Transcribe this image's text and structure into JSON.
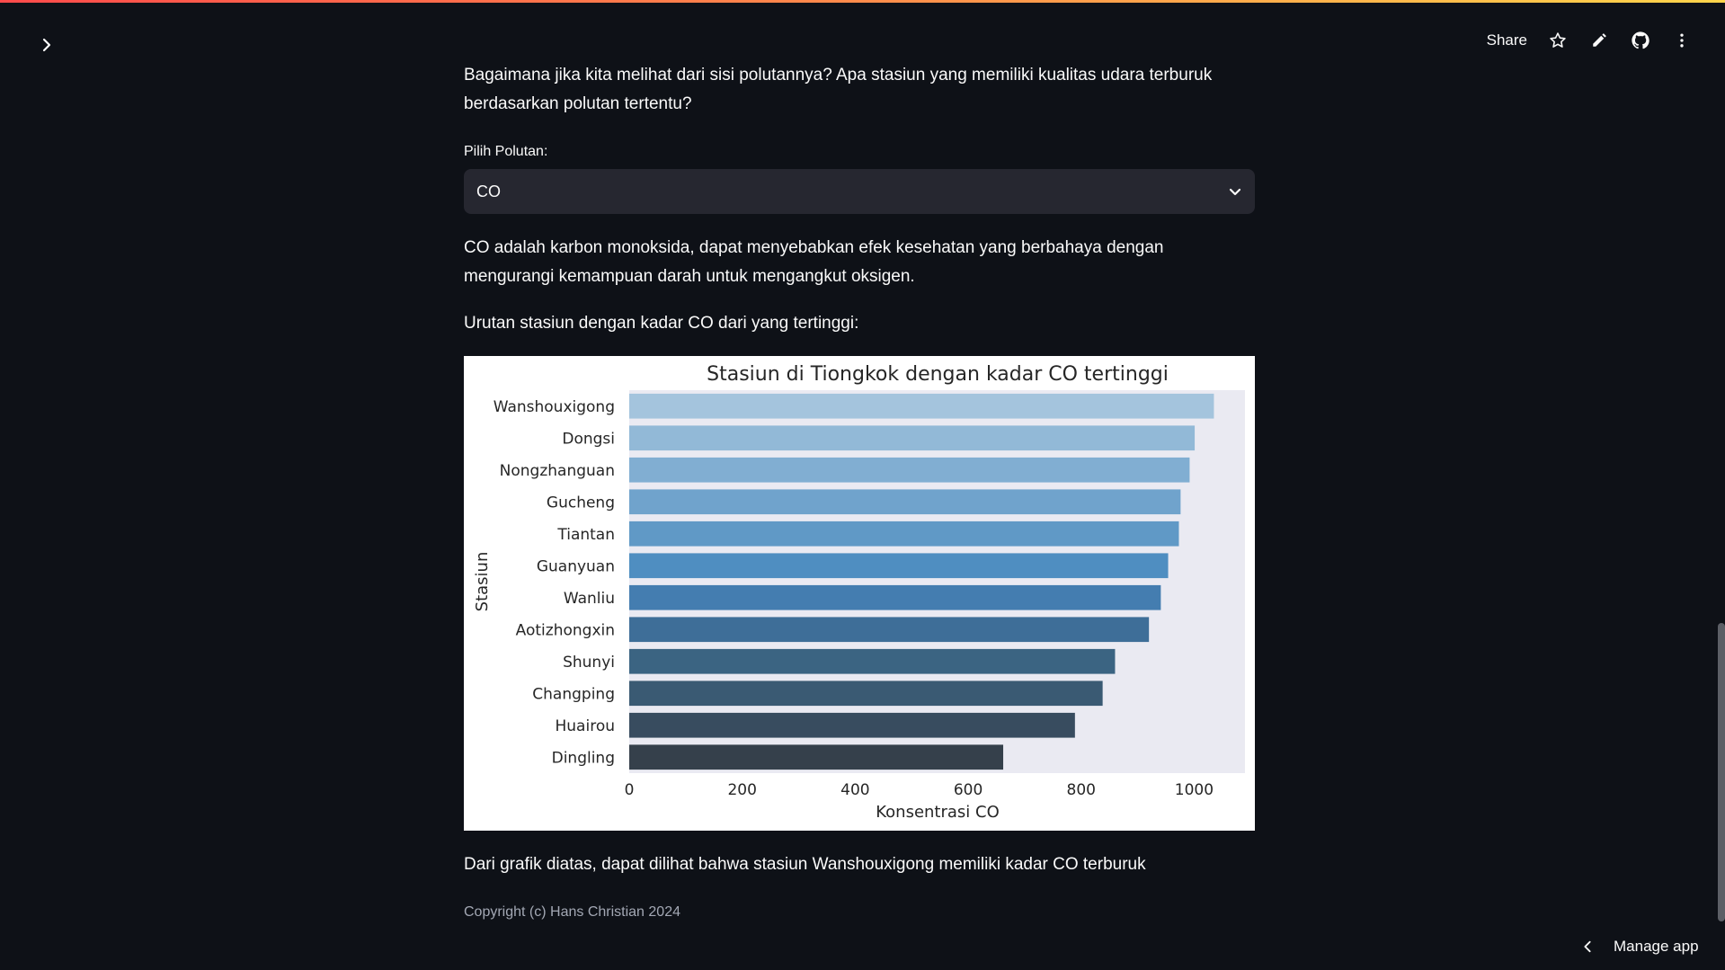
{
  "header": {
    "share_label": "Share"
  },
  "content": {
    "intro": "Bagaimana jika kita melihat dari sisi polutannya? Apa stasiun yang memiliki kualitas udara terburuk berdasarkan polutan tertentu?",
    "select_label": "Pilih Polutan:",
    "select_value": "CO",
    "description": "CO adalah karbon monoksida, dapat menyebabkan efek kesehatan yang berbahaya dengan mengurangi kemampuan darah untuk mengangkut oksigen.",
    "rank_heading": "Urutan stasiun dengan kadar CO dari yang tertinggi:",
    "conclusion": "Dari grafik diatas, dapat dilihat bahwa stasiun Wanshouxigong memiliki kadar CO terburuk",
    "copyright": "Copyright (c) Hans Christian 2024"
  },
  "footer": {
    "manage_app_label": "Manage app"
  },
  "chart_data": {
    "type": "bar",
    "orientation": "horizontal",
    "title": "Stasiun di Tiongkok dengan kadar CO tertinggi",
    "xlabel": "Konsentrasi CO",
    "ylabel": "Stasiun",
    "xlim": [
      0,
      1090
    ],
    "xticks": [
      "0",
      "200",
      "400",
      "600",
      "800",
      "1000"
    ],
    "xtick_values": [
      0,
      200,
      400,
      600,
      800,
      1000
    ],
    "categories": [
      "Wanshouxigong",
      "Dongsi",
      "Nongzhanguan",
      "Gucheng",
      "Tiantan",
      "Guanyuan",
      "Wanliu",
      "Aotizhongxin",
      "Shunyi",
      "Changping",
      "Huairou",
      "Dingling"
    ],
    "values": [
      1035,
      1001,
      992,
      976,
      973,
      954,
      941,
      920,
      860,
      838,
      789,
      662
    ],
    "colors": [
      "#a4c4dd",
      "#92b9d7",
      "#81aed2",
      "#70a3cc",
      "#6099c6",
      "#4f8ec1",
      "#447db0",
      "#3e6e98",
      "#3b6482",
      "#3a5a73",
      "#384c5f",
      "#35404b"
    ],
    "background": "#eaeaf2",
    "grid": false,
    "legend": "none"
  }
}
